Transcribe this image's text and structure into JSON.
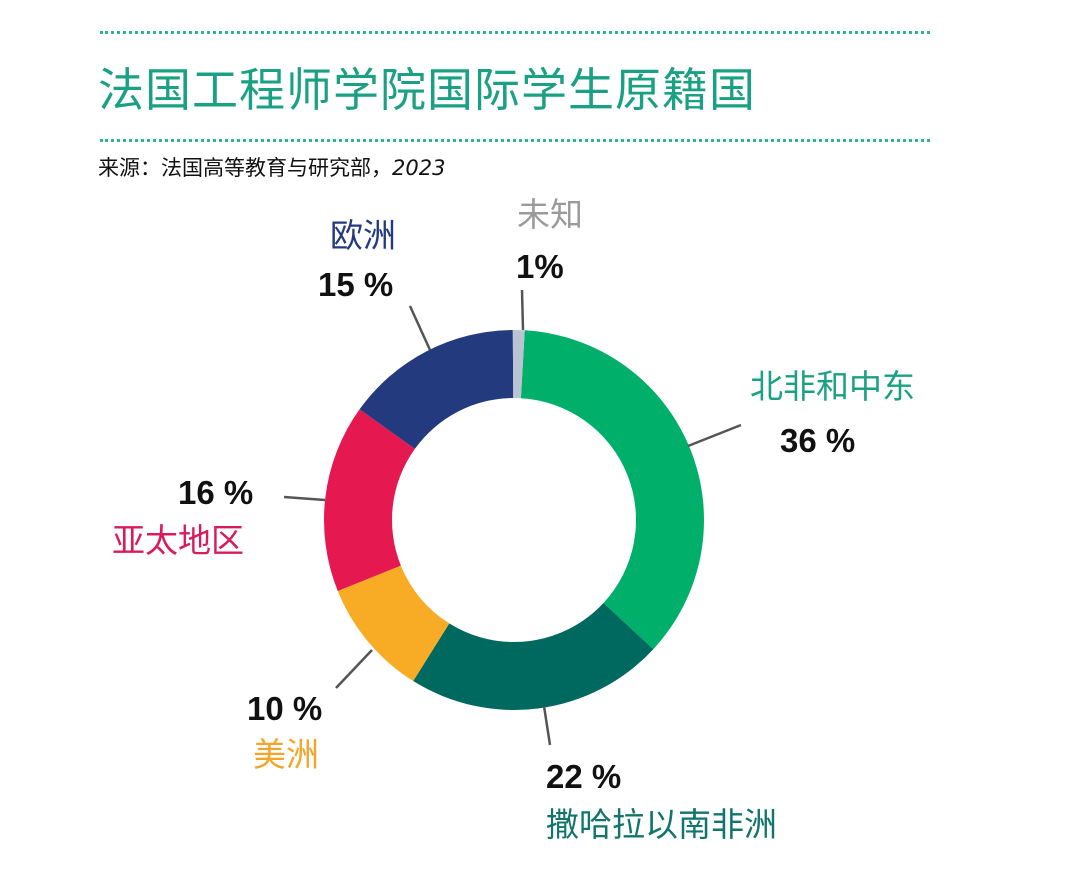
{
  "header": {
    "title": "法国工程师学院国际学生原籍国",
    "source_prefix": "来源：法国高等教育与研究部，",
    "source_year": "2023"
  },
  "labels": {
    "europe": {
      "name": "欧洲",
      "pct": "15 %"
    },
    "unknown": {
      "name": "未知",
      "pct": "1%"
    },
    "mena": {
      "name": "北非和中东",
      "pct": "36 %"
    },
    "asia_pacific": {
      "name": "亚太地区",
      "pct": "16 %"
    },
    "americas": {
      "name": "美洲",
      "pct": "10 %"
    },
    "ssa": {
      "name": "撒哈拉以南非洲",
      "pct": "22 %"
    }
  },
  "colors": {
    "title": "#1aa184",
    "mena": "#00b06a",
    "ssa": "#00695f",
    "americas": "#f8ac25",
    "asia_pacific": "#e5194f",
    "europe": "#243a7e",
    "unknown": "#b9c3d3"
  },
  "chart_data": {
    "type": "pie",
    "subtype": "donut",
    "title": "法国工程师学院国际学生原籍国",
    "subtitle": "来源：法国高等教育与研究部，2023",
    "categories": [
      "北非和中东",
      "撒哈拉以南非洲",
      "美洲",
      "亚太地区",
      "欧洲",
      "未知"
    ],
    "values": [
      36,
      22,
      10,
      16,
      15,
      1
    ],
    "unit": "%",
    "colors": [
      "#00b06a",
      "#00695f",
      "#f8ac25",
      "#e5194f",
      "#243a7e",
      "#b9c3d3"
    ],
    "start_angle": "12 o'clock, clockwise",
    "legend": "none (direct labels with leader lines)"
  }
}
